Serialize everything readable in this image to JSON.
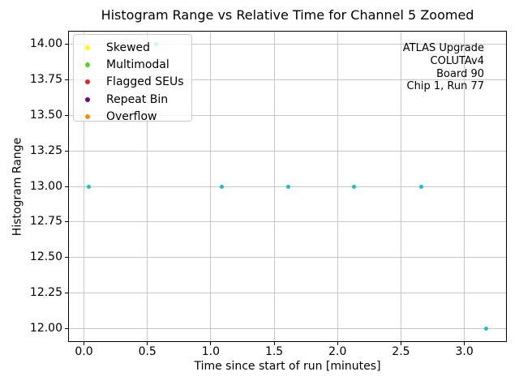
{
  "chart_data": {
    "type": "scatter",
    "title": "Histogram Range vs Relative Time for Channel 5 Zoomed",
    "xlabel": "Time since start of run [minutes]",
    "ylabel": "Histogram Range",
    "xlim": [
      -0.125,
      3.335
    ],
    "ylim": [
      11.909,
      14.091
    ],
    "xticks": [
      0.0,
      0.5,
      1.0,
      1.5,
      2.0,
      2.5,
      3.0
    ],
    "xtick_labels": [
      "0.0",
      "0.5",
      "1.0",
      "1.5",
      "2.0",
      "2.5",
      "3.0"
    ],
    "yticks": [
      12.0,
      12.25,
      12.5,
      12.75,
      13.0,
      13.25,
      13.5,
      13.75,
      14.0
    ],
    "ytick_labels": [
      "12.00",
      "12.25",
      "12.50",
      "12.75",
      "13.00",
      "13.25",
      "13.50",
      "13.75",
      "14.00"
    ],
    "grid": true,
    "grid_color": "#c8c8c8",
    "series": [
      {
        "name": "histogram-range",
        "color": "#17becf",
        "marker": "circle",
        "points": [
          [
            0.04,
            13.0
          ],
          [
            0.57,
            14.0
          ],
          [
            1.09,
            13.0
          ],
          [
            1.61,
            13.0
          ],
          [
            2.13,
            13.0
          ],
          [
            2.66,
            13.0
          ],
          [
            3.17,
            12.0
          ]
        ]
      }
    ],
    "legend": {
      "position": "upper-left",
      "entries": [
        {
          "label": "Skewed",
          "color": "#ffff00"
        },
        {
          "label": "Multimodal",
          "color": "#4cd41e"
        },
        {
          "label": "Flagged SEUs",
          "color": "#e02525"
        },
        {
          "label": "Repeat Bin",
          "color": "#800080"
        },
        {
          "label": "Overflow",
          "color": "#ff8c00"
        }
      ]
    },
    "annotation": {
      "align": "right",
      "lines": [
        "ATLAS Upgrade",
        "COLUTAv4",
        "Board 90",
        "Chip 1, Run 77"
      ]
    }
  }
}
